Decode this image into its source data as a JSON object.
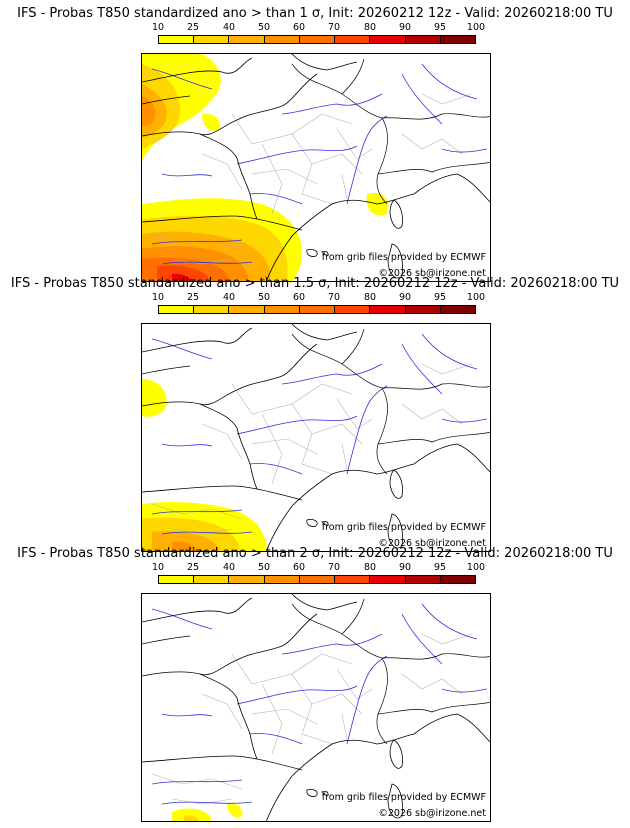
{
  "palette": [
    "#ffff00",
    "#ffd700",
    "#ffb000",
    "#ff9000",
    "#ff7000",
    "#ff4500",
    "#e80000",
    "#b00000",
    "#800000",
    "#400000"
  ],
  "legend_ticks": [
    "10",
    "25",
    "40",
    "50",
    "60",
    "70",
    "80",
    "90",
    "95",
    "100"
  ],
  "panels": [
    {
      "title": "IFS - Probas T850  standardized ano > than 1 σ, Init: 20260212 12z - Valid: 20260218:00 TU",
      "credit_source": "from grib files provided by ECMWF",
      "credit_copyright": "©2026 sb@irizone.net"
    },
    {
      "title": "IFS - Probas T850  standardized ano > than 1.5 σ, Init: 20260212 12z - Valid: 20260218:00 TU",
      "credit_source": "from grib files provided by ECMWF",
      "credit_copyright": "©2026 sb@irizone.net"
    },
    {
      "title": "IFS - Probas T850  standardized ano > than 2 σ, Init: 20260212 12z - Valid: 20260218:00 TU",
      "credit_source": "from grib files provided by ECMWF",
      "credit_copyright": "©2026 sb@irizone.net"
    }
  ]
}
